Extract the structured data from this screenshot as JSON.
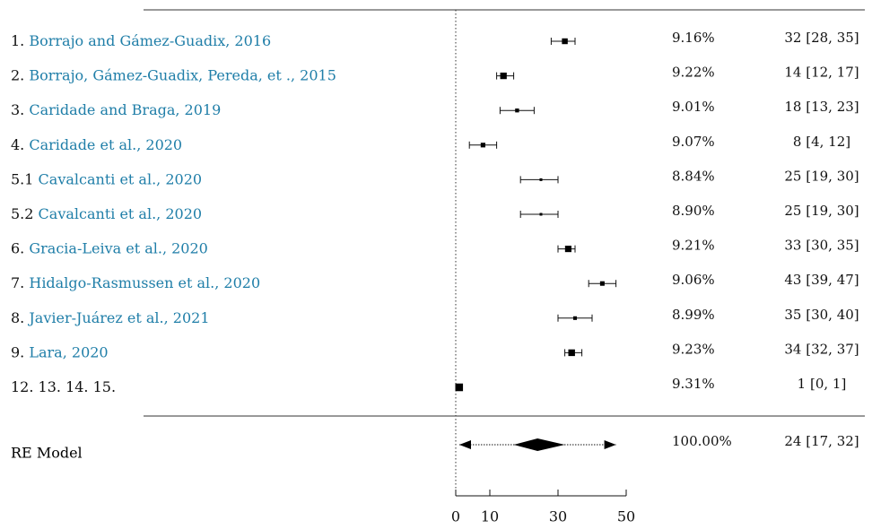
{
  "chart_data": {
    "type": "forest",
    "xlim": [
      0,
      50
    ],
    "xticks": [
      0,
      10,
      30,
      50
    ],
    "reference_line": 0,
    "studies": [
      {
        "prefix": "1.",
        "name": "Borrajo and Gámez-Guadix, 2016",
        "weight": "9.16%",
        "ci_text": "32 [28, 35]",
        "est": 32,
        "lo": 28,
        "hi": 35
      },
      {
        "prefix": "2.",
        "name": "Borrajo, Gámez-Guadix, Pereda, et ., 2015",
        "weight": "9.22%",
        "ci_text": "14 [12, 17]",
        "est": 14,
        "lo": 12,
        "hi": 17
      },
      {
        "prefix": "3.",
        "name": "Caridade and Braga, 2019",
        "weight": "9.01%",
        "ci_text": "18 [13, 23]",
        "est": 18,
        "lo": 13,
        "hi": 23
      },
      {
        "prefix": "4.",
        "name": "Caridade et al., 2020",
        "weight": "9.07%",
        "ci_text": "8 [4, 12]",
        "est": 8,
        "lo": 4,
        "hi": 12
      },
      {
        "prefix": "5.1",
        "name": "Cavalcanti et al., 2020",
        "weight": "8.84%",
        "ci_text": "25 [19, 30]",
        "est": 25,
        "lo": 19,
        "hi": 30
      },
      {
        "prefix": "5.2",
        "name": "Cavalcanti et al., 2020",
        "weight": "8.90%",
        "ci_text": "25 [19, 30]",
        "est": 25,
        "lo": 19,
        "hi": 30
      },
      {
        "prefix": "6.",
        "name": "Gracia-Leiva et al., 2020",
        "weight": "9.21%",
        "ci_text": "33 [30, 35]",
        "est": 33,
        "lo": 30,
        "hi": 35
      },
      {
        "prefix": "7.",
        "name": "Hidalgo-Rasmussen et al., 2020",
        "weight": "9.06%",
        "ci_text": "43 [39, 47]",
        "est": 43,
        "lo": 39,
        "hi": 47
      },
      {
        "prefix": "8.",
        "name": "Javier-Juárez et al., 2021",
        "weight": "8.99%",
        "ci_text": "35 [30, 40]",
        "est": 35,
        "lo": 30,
        "hi": 40
      },
      {
        "prefix": "9.",
        "name": "Lara, 2020",
        "weight": "9.23%",
        "ci_text": "34 [32, 37]",
        "est": 34,
        "lo": 32,
        "hi": 37
      },
      {
        "prefix": "12. 13. 14. 15.",
        "name": "",
        "weight": "9.31%",
        "ci_text": "1 [0, 1]",
        "est": 1,
        "lo": 0,
        "hi": 1
      }
    ],
    "summary": {
      "label": "RE Model",
      "weight": "100.00%",
      "ci_text": "24 [17, 32]",
      "est": 24,
      "lo": 17,
      "hi": 32,
      "pi_lo": 0,
      "pi_hi": 47
    }
  }
}
